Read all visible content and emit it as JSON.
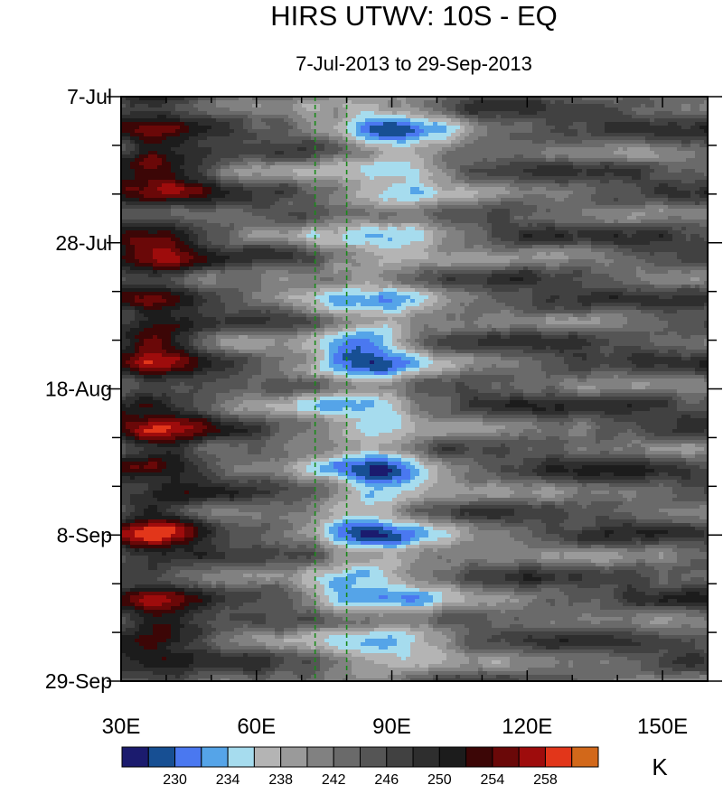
{
  "chart_data": {
    "type": "heatmap",
    "title": "HIRS UTWV: 10S - EQ",
    "subtitle": "7-Jul-2013 to 29-Sep-2013",
    "x_tick_labels": [
      "30E",
      "60E",
      "90E",
      "120E",
      "150E"
    ],
    "x_tick_values": [
      30,
      60,
      90,
      120,
      150
    ],
    "x_range": [
      30,
      160
    ],
    "y_tick_labels": [
      "7-Jul",
      "28-Jul",
      "18-Aug",
      "8-Sep",
      "29-Sep"
    ],
    "y_tick_days": [
      0,
      21,
      42,
      63,
      84
    ],
    "y_range_days": [
      0,
      84
    ],
    "reference_lines_lon": [
      73,
      80
    ],
    "colorbar": {
      "unit": "K",
      "levels": [
        228,
        230,
        232,
        234,
        236,
        238,
        240,
        242,
        244,
        246,
        248,
        250,
        252,
        254,
        256,
        258
      ],
      "labels": [
        "230",
        "234",
        "238",
        "242",
        "246",
        "250",
        "254",
        "258"
      ],
      "colors": [
        "#1b1b6e",
        "#174f93",
        "#4a78f0",
        "#55a4e8",
        "#a6dcee",
        "#b4b4b4",
        "#9a9a9a",
        "#818181",
        "#6a6a6a",
        "#555555",
        "#414141",
        "#2e2e2e",
        "#1c1c1c",
        "#3c0606",
        "#6a0808",
        "#9e0c0c",
        "#e2361a",
        "#d2681a"
      ]
    }
  }
}
